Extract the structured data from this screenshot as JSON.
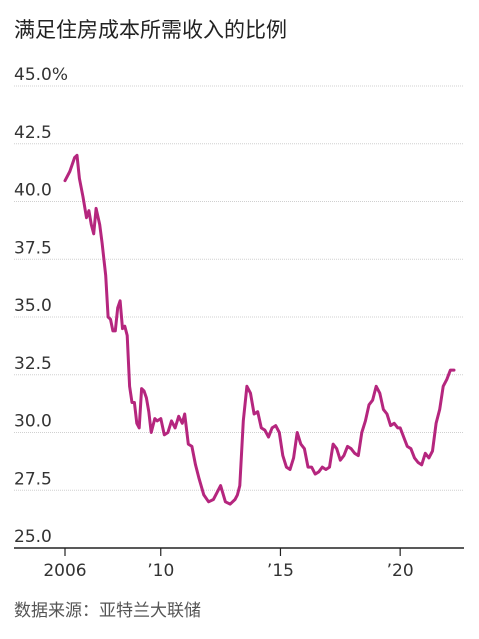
{
  "chart_data": {
    "type": "line",
    "title": "满足住房成本所需收入的比例",
    "source": "数据来源：亚特兰大联储",
    "xlabel": "",
    "ylabel": "",
    "ylim": [
      25.0,
      45.0
    ],
    "yticks": [
      25.0,
      27.5,
      30.0,
      32.5,
      35.0,
      37.5,
      40.0,
      42.5,
      45.0
    ],
    "ytick_labels": [
      "25.0",
      "27.5",
      "30.0",
      "32.5",
      "35.0",
      "37.5",
      "40.0",
      "42.5",
      "45.0%"
    ],
    "xlim": [
      2006.0,
      2022.5
    ],
    "xticks": [
      2006,
      2010,
      2015,
      2020
    ],
    "xtick_labels": [
      "2006",
      "’10",
      "’15",
      "’20"
    ],
    "grid": true,
    "line_color": "#b5267e",
    "series": [
      {
        "x": [
          2006.0,
          2006.2,
          2006.4,
          2006.5,
          2006.6,
          2006.75,
          2006.9,
          2007.0,
          2007.1,
          2007.2,
          2007.3,
          2007.45,
          2007.55,
          2007.7,
          2007.8,
          2007.9,
          2008.0,
          2008.1,
          2008.2,
          2008.3,
          2008.4,
          2008.5,
          2008.6,
          2008.7,
          2008.8,
          2008.9,
          2009.0,
          2009.1,
          2009.2,
          2009.3,
          2009.4,
          2009.5,
          2009.6,
          2009.75,
          2009.85,
          2010.0,
          2010.15,
          2010.3,
          2010.45,
          2010.6,
          2010.75,
          2010.9,
          2011.0,
          2011.15,
          2011.3,
          2011.45,
          2011.6,
          2011.8,
          2012.0,
          2012.2,
          2012.35,
          2012.5,
          2012.7,
          2012.9,
          2013.1,
          2013.2,
          2013.3,
          2013.45,
          2013.6,
          2013.75,
          2013.9,
          2014.05,
          2014.2,
          2014.35,
          2014.5,
          2014.65,
          2014.8,
          2014.95,
          2015.1,
          2015.25,
          2015.4,
          2015.55,
          2015.7,
          2015.85,
          2016.0,
          2016.15,
          2016.3,
          2016.45,
          2016.6,
          2016.75,
          2016.9,
          2017.05,
          2017.2,
          2017.35,
          2017.5,
          2017.65,
          2017.8,
          2017.95,
          2018.1,
          2018.25,
          2018.4,
          2018.55,
          2018.7,
          2018.85,
          2019.0,
          2019.15,
          2019.3,
          2019.45,
          2019.6,
          2019.75,
          2019.9,
          2020.0,
          2020.15,
          2020.3,
          2020.45,
          2020.6,
          2020.75,
          2020.9,
          2021.05,
          2021.2,
          2021.35,
          2021.5,
          2021.65,
          2021.8,
          2021.95,
          2022.1,
          2022.25
        ],
        "y": [
          40.9,
          41.3,
          41.9,
          42.0,
          41.0,
          40.2,
          39.3,
          39.6,
          39.0,
          38.6,
          39.7,
          39.0,
          38.2,
          36.8,
          35.0,
          34.9,
          34.4,
          34.4,
          35.4,
          35.7,
          34.5,
          34.6,
          34.2,
          32.0,
          31.3,
          31.3,
          30.4,
          30.2,
          31.9,
          31.8,
          31.5,
          30.9,
          30.0,
          30.6,
          30.5,
          30.6,
          29.9,
          30.0,
          30.5,
          30.2,
          30.7,
          30.4,
          30.8,
          29.5,
          29.4,
          28.6,
          28.0,
          27.3,
          27.0,
          27.1,
          27.4,
          27.7,
          27.0,
          26.9,
          27.1,
          27.3,
          27.7,
          30.5,
          32.0,
          31.7,
          30.8,
          30.9,
          30.2,
          30.1,
          29.8,
          30.2,
          30.3,
          30.0,
          29.0,
          28.5,
          28.4,
          28.9,
          30.0,
          29.5,
          29.3,
          28.5,
          28.5,
          28.2,
          28.3,
          28.5,
          28.4,
          28.5,
          29.5,
          29.3,
          28.8,
          29.0,
          29.4,
          29.3,
          29.1,
          29.0,
          30.0,
          30.5,
          31.2,
          31.4,
          32.0,
          31.7,
          31.0,
          30.8,
          30.3,
          30.4,
          30.2,
          30.2,
          29.8,
          29.4,
          29.3,
          28.9,
          28.7,
          28.6,
          29.1,
          28.9,
          29.2,
          30.4,
          31.0,
          32.0,
          32.3,
          32.7,
          32.7
        ]
      }
    ]
  }
}
